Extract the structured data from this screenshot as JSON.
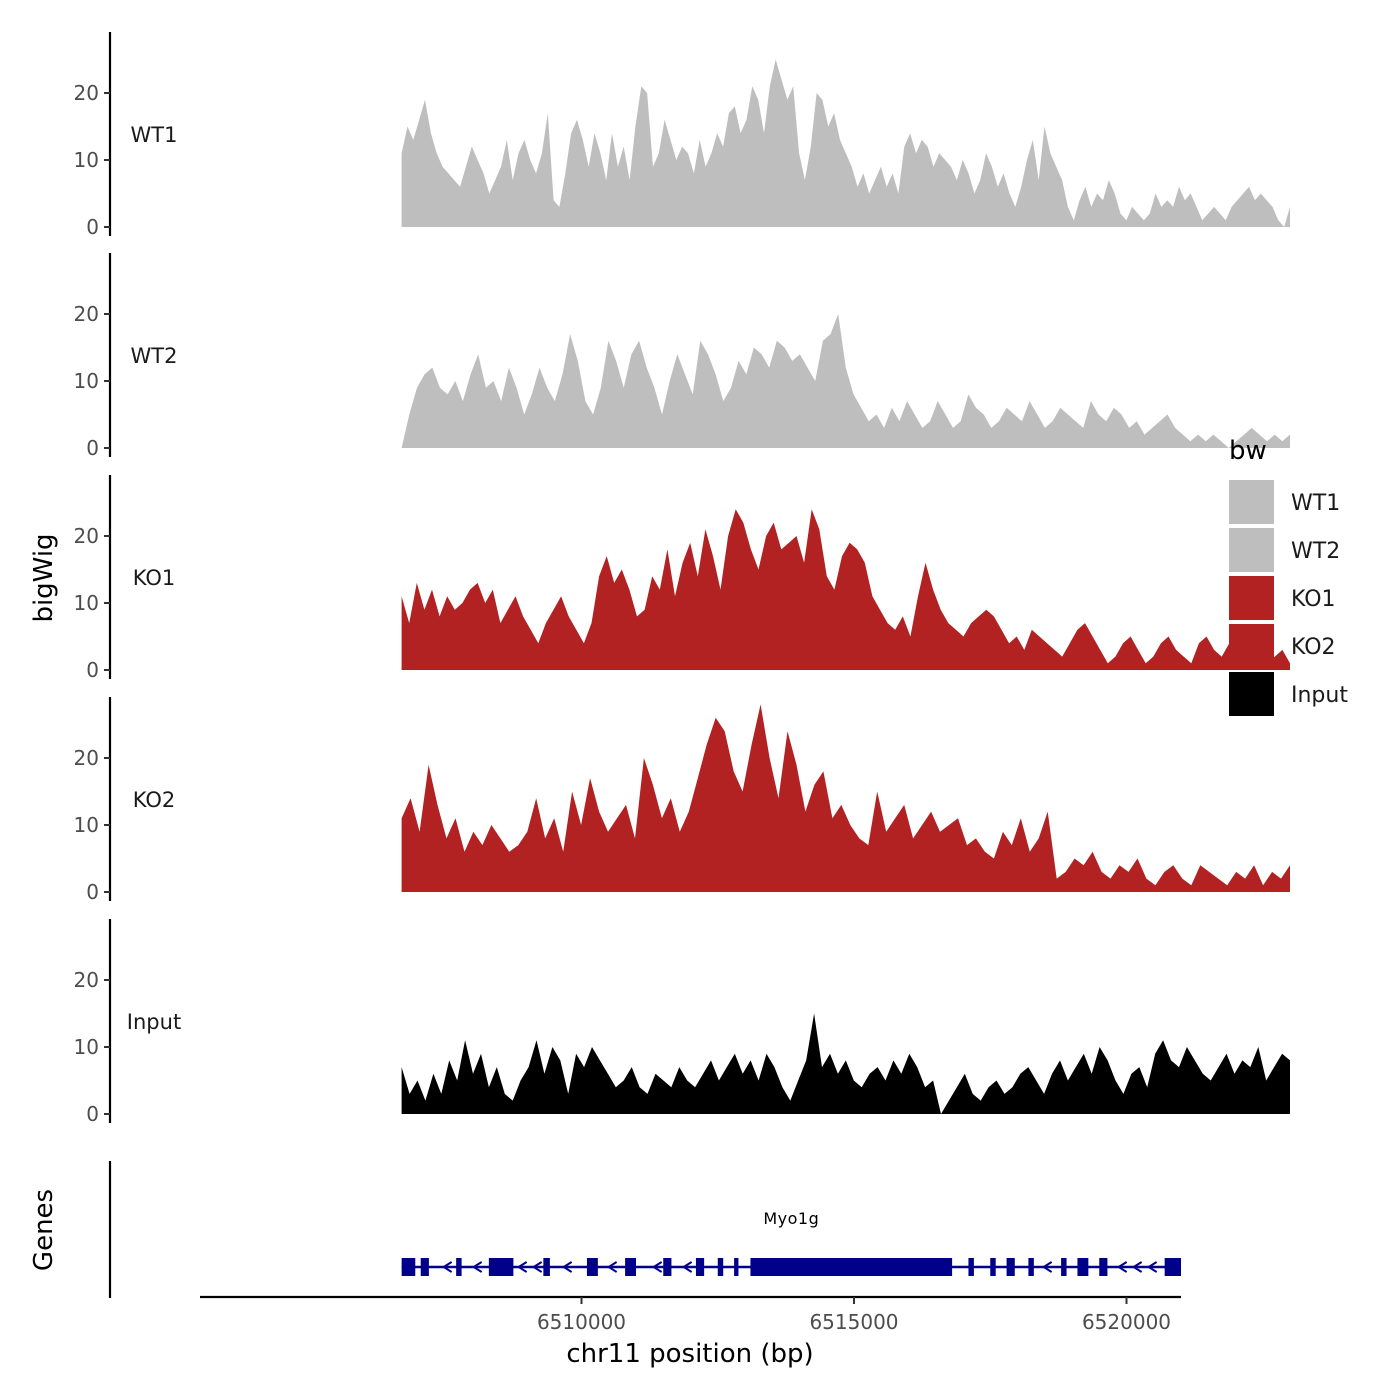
{
  "chart_data": {
    "type": "area",
    "ylabel": "bigWig",
    "xlabel": "chr11 position (bp)",
    "x_range": [
      6503000,
      6521000
    ],
    "x_ticks": [
      6510000,
      6515000,
      6520000
    ],
    "x_tick_labels": [
      "6510000",
      "6515000",
      "6520000"
    ],
    "data_x_range": [
      6506700,
      6523000
    ],
    "y_range": [
      0,
      29
    ],
    "y_ticks": [
      0,
      10,
      20
    ],
    "y_tick_labels": [
      "0",
      "10",
      "20"
    ],
    "tracks": [
      {
        "name": "WT1",
        "color": "#BEBEBE",
        "values": [
          11,
          15,
          13,
          16,
          19,
          14,
          11,
          9,
          8,
          7,
          6,
          9,
          12,
          10,
          8,
          5,
          7,
          9,
          13,
          7,
          11,
          13,
          10,
          8,
          11,
          17,
          4,
          3,
          8,
          14,
          16,
          13,
          9,
          14,
          11,
          7,
          14,
          9,
          12,
          7,
          15,
          21,
          20,
          9,
          11,
          16,
          13,
          10,
          12,
          11,
          8,
          13,
          9,
          11,
          14,
          12,
          17,
          18,
          14,
          16,
          21,
          19,
          14,
          21,
          25,
          22,
          19,
          21,
          11,
          7,
          12,
          20,
          19,
          15,
          17,
          13,
          11,
          9,
          6,
          8,
          5,
          7,
          9,
          6,
          8,
          5,
          12,
          14,
          11,
          13,
          12,
          9,
          11,
          10,
          9,
          7,
          10,
          8,
          5,
          7,
          11,
          9,
          6,
          8,
          5,
          3,
          6,
          10,
          13,
          7,
          15,
          11,
          9,
          7,
          3,
          1,
          4,
          6,
          3,
          5,
          4,
          7,
          5,
          2,
          1,
          3,
          2,
          1,
          2,
          5,
          3,
          4,
          3,
          6,
          4,
          5,
          3,
          1,
          2,
          3,
          2,
          1,
          3,
          4,
          5,
          6,
          4,
          5,
          4,
          3,
          1,
          0,
          3
        ]
      },
      {
        "name": "WT2",
        "color": "#BEBEBE",
        "values": [
          0,
          5,
          9,
          11,
          12,
          9,
          8,
          10,
          7,
          11,
          14,
          9,
          10,
          7,
          12,
          9,
          5,
          8,
          12,
          9,
          7,
          11,
          17,
          13,
          7,
          5,
          9,
          16,
          13,
          9,
          14,
          16,
          12,
          9,
          5,
          10,
          14,
          11,
          8,
          16,
          14,
          11,
          7,
          9,
          13,
          11,
          15,
          14,
          12,
          16,
          15,
          13,
          14,
          12,
          10,
          16,
          17,
          20,
          12,
          8,
          6,
          4,
          5,
          3,
          6,
          4,
          7,
          5,
          3,
          4,
          7,
          5,
          3,
          4,
          8,
          6,
          5,
          3,
          4,
          6,
          5,
          4,
          7,
          5,
          3,
          4,
          6,
          5,
          4,
          3,
          7,
          5,
          4,
          6,
          5,
          3,
          4,
          2,
          3,
          4,
          5,
          3,
          2,
          1,
          2,
          1,
          2,
          1,
          0,
          1,
          2,
          3,
          2,
          1,
          2,
          1,
          2
        ]
      },
      {
        "name": "KO1",
        "color": "#B22222",
        "values": [
          11,
          7,
          13,
          9,
          12,
          8,
          11,
          9,
          10,
          12,
          13,
          10,
          12,
          7,
          9,
          11,
          8,
          6,
          4,
          7,
          9,
          11,
          8,
          6,
          4,
          7,
          14,
          17,
          13,
          15,
          12,
          8,
          9,
          14,
          12,
          18,
          11,
          16,
          19,
          14,
          21,
          17,
          12,
          20,
          24,
          22,
          18,
          15,
          20,
          22,
          18,
          19,
          20,
          16,
          24,
          21,
          14,
          12,
          17,
          19,
          18,
          16,
          11,
          9,
          7,
          6,
          8,
          5,
          11,
          16,
          12,
          9,
          7,
          6,
          5,
          7,
          8,
          9,
          8,
          6,
          4,
          5,
          3,
          6,
          5,
          4,
          3,
          2,
          4,
          6,
          7,
          5,
          3,
          1,
          2,
          4,
          5,
          3,
          1,
          2,
          4,
          5,
          3,
          2,
          1,
          4,
          5,
          3,
          2,
          4,
          1,
          3,
          2,
          4,
          1,
          2,
          3,
          1
        ]
      },
      {
        "name": "KO2",
        "color": "#B22222",
        "values": [
          11,
          14,
          9,
          19,
          13,
          8,
          11,
          6,
          9,
          7,
          10,
          8,
          6,
          7,
          9,
          14,
          8,
          11,
          6,
          15,
          10,
          17,
          12,
          9,
          11,
          13,
          8,
          20,
          16,
          11,
          14,
          9,
          12,
          17,
          22,
          26,
          24,
          18,
          15,
          22,
          28,
          20,
          14,
          24,
          19,
          12,
          16,
          18,
          11,
          13,
          10,
          8,
          7,
          15,
          9,
          11,
          13,
          8,
          10,
          12,
          9,
          10,
          11,
          7,
          8,
          6,
          5,
          9,
          7,
          11,
          6,
          8,
          12,
          2,
          3,
          5,
          4,
          6,
          3,
          2,
          4,
          3,
          5,
          2,
          1,
          3,
          4,
          2,
          1,
          4,
          3,
          2,
          1,
          3,
          2,
          4,
          1,
          3,
          2,
          4
        ]
      },
      {
        "name": "Input",
        "color": "#000000",
        "values": [
          7,
          3,
          5,
          2,
          6,
          3,
          8,
          5,
          11,
          6,
          9,
          4,
          7,
          3,
          2,
          5,
          7,
          11,
          6,
          10,
          8,
          3,
          9,
          7,
          10,
          8,
          6,
          4,
          5,
          7,
          4,
          3,
          6,
          5,
          4,
          7,
          5,
          4,
          6,
          8,
          5,
          7,
          9,
          6,
          8,
          5,
          9,
          7,
          4,
          2,
          5,
          8,
          15,
          7,
          9,
          6,
          8,
          5,
          4,
          6,
          7,
          5,
          8,
          6,
          9,
          7,
          4,
          5,
          0,
          2,
          4,
          6,
          3,
          2,
          4,
          5,
          3,
          4,
          6,
          7,
          5,
          3,
          6,
          8,
          5,
          7,
          9,
          6,
          10,
          8,
          5,
          3,
          6,
          7,
          4,
          9,
          11,
          8,
          7,
          10,
          8,
          6,
          5,
          7,
          9,
          6,
          8,
          7,
          10,
          5,
          7,
          9,
          8
        ]
      }
    ],
    "genes_label": "Genes",
    "genes": [
      {
        "name": "Myo1g",
        "color": "#00008B",
        "start": 6506700,
        "end": 6521000,
        "exons": [
          [
            6506700,
            6506950
          ],
          [
            6507050,
            6507200
          ],
          [
            6507700,
            6507800
          ],
          [
            6508300,
            6508750
          ],
          [
            6509300,
            6509420
          ],
          [
            6510100,
            6510300
          ],
          [
            6510800,
            6511000
          ],
          [
            6511500,
            6511650
          ],
          [
            6512100,
            6512250
          ],
          [
            6512500,
            6512600
          ],
          [
            6512800,
            6512880
          ],
          [
            6513100,
            6516800
          ],
          [
            6517100,
            6517200
          ],
          [
            6517500,
            6517600
          ],
          [
            6517800,
            6517950
          ],
          [
            6518200,
            6518300
          ],
          [
            6518800,
            6518900
          ],
          [
            6519100,
            6519300
          ],
          [
            6519500,
            6519650
          ],
          [
            6520700,
            6521000
          ]
        ]
      }
    ],
    "legend": {
      "title": "bw",
      "position": "right",
      "entries": [
        {
          "label": "WT1",
          "color": "#BEBEBE"
        },
        {
          "label": "WT2",
          "color": "#BEBEBE"
        },
        {
          "label": "KO1",
          "color": "#B22222"
        },
        {
          "label": "KO2",
          "color": "#B22222"
        },
        {
          "label": "Input",
          "color": "#000000"
        }
      ]
    }
  }
}
